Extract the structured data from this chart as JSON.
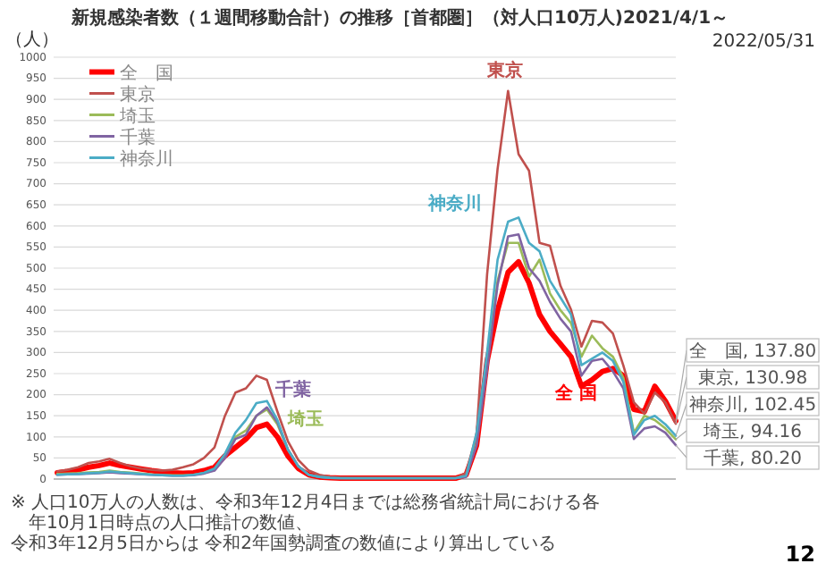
{
  "chart_data": {
    "type": "line",
    "title": "新規感染者数（１週間移動合計）の推移［首都圏］（対人口10万人)2021/4/1～",
    "subtitle": "2022/05/31",
    "ylabel": "（人）",
    "categories": [
      null,
      null,
      null,
      null,
      null,
      null,
      null,
      null,
      null,
      null,
      null,
      null,
      null,
      null,
      null,
      null,
      null,
      null,
      null,
      null,
      null,
      null,
      null,
      null,
      null,
      null,
      null,
      null,
      null,
      null,
      null,
      null,
      null,
      null,
      null,
      null,
      null,
      null,
      null,
      null,
      null,
      null,
      null,
      null,
      null,
      null,
      null,
      null,
      null,
      null,
      null,
      null,
      null,
      null,
      null,
      null,
      null,
      null,
      null,
      null
    ],
    "ylim": [
      0,
      1000
    ],
    "yticks": [
      0,
      50,
      100,
      150,
      200,
      250,
      300,
      350,
      400,
      450,
      500,
      550,
      600,
      650,
      700,
      750,
      800,
      850,
      900,
      950,
      1000
    ],
    "grid": "y",
    "legend": "top left",
    "marker": "none",
    "line_style": "solid",
    "series": [
      {
        "name": "全　国",
        "color": "#ff0000",
        "values": [
          15,
          18,
          22,
          28,
          32,
          38,
          32,
          28,
          24,
          20,
          17,
          15,
          14,
          15,
          20,
          28,
          55,
          75,
          95,
          122,
          130,
          100,
          55,
          25,
          10,
          5,
          3,
          2,
          2,
          2,
          2,
          2,
          2,
          2,
          2,
          2,
          2,
          2,
          2,
          10,
          80,
          280,
          400,
          490,
          515,
          465,
          390,
          350,
          320,
          290,
          220,
          235,
          255,
          262,
          245,
          165,
          160,
          220,
          185,
          137.8
        ],
        "value_labels": [
          null,
          null,
          null,
          null,
          null,
          null,
          null,
          null,
          null,
          null,
          null,
          null,
          null,
          null,
          null,
          null,
          null,
          null,
          null,
          null,
          null,
          null,
          null,
          null,
          null,
          null,
          null,
          null,
          null,
          null,
          null,
          null,
          null,
          null,
          null,
          null,
          null,
          null,
          null,
          null,
          null,
          null,
          null,
          null,
          null,
          null,
          null,
          null,
          null,
          null,
          null,
          null,
          null,
          null,
          null,
          null,
          null,
          null,
          null,
          "全　国, 137.80"
        ]
      },
      {
        "name": "東京",
        "color": "#c0504d",
        "values": [
          18,
          22,
          28,
          38,
          42,
          48,
          38,
          30,
          25,
          22,
          20,
          22,
          28,
          35,
          50,
          75,
          150,
          205,
          215,
          245,
          235,
          160,
          90,
          45,
          20,
          10,
          5,
          3,
          2,
          2,
          2,
          2,
          2,
          2,
          2,
          2,
          2,
          2,
          2,
          15,
          106,
          485,
          735,
          920,
          770,
          731,
          560,
          553,
          458,
          402,
          314,
          375,
          371,
          345,
          269,
          182,
          155,
          205,
          182,
          130.98
        ],
        "value_labels": [
          null,
          null,
          null,
          null,
          null,
          null,
          null,
          null,
          null,
          null,
          null,
          null,
          null,
          null,
          null,
          null,
          null,
          null,
          null,
          null,
          null,
          null,
          null,
          null,
          null,
          null,
          null,
          null,
          null,
          null,
          null,
          null,
          null,
          null,
          null,
          null,
          null,
          null,
          null,
          null,
          null,
          null,
          null,
          null,
          null,
          null,
          null,
          null,
          null,
          null,
          null,
          null,
          null,
          null,
          null,
          null,
          null,
          null,
          null,
          "東京, 130.98"
        ]
      },
      {
        "name": "埼玉",
        "color": "#9bbb59",
        "values": [
          12,
          13,
          14,
          16,
          17,
          20,
          17,
          15,
          13,
          11,
          10,
          9,
          9,
          10,
          14,
          22,
          55,
          100,
          115,
          150,
          165,
          130,
          70,
          30,
          10,
          5,
          3,
          2,
          2,
          2,
          2,
          2,
          2,
          2,
          2,
          2,
          2,
          2,
          2,
          6,
          85,
          270,
          470,
          560,
          560,
          480,
          520,
          440,
          400,
          370,
          290,
          340,
          310,
          290,
          240,
          110,
          150,
          140,
          120,
          94.16
        ],
        "value_labels": [
          null,
          null,
          null,
          null,
          null,
          null,
          null,
          null,
          null,
          null,
          null,
          null,
          null,
          null,
          null,
          null,
          null,
          null,
          null,
          null,
          null,
          null,
          null,
          null,
          null,
          null,
          null,
          null,
          null,
          null,
          null,
          null,
          null,
          null,
          null,
          null,
          null,
          null,
          null,
          null,
          null,
          null,
          null,
          null,
          null,
          null,
          null,
          null,
          null,
          null,
          null,
          null,
          null,
          null,
          null,
          null,
          null,
          null,
          null,
          "埼玉, 94.16"
        ]
      },
      {
        "name": "千葉",
        "color": "#8064a2",
        "values": [
          10,
          11,
          12,
          13,
          14,
          16,
          14,
          13,
          11,
          10,
          9,
          8,
          8,
          9,
          13,
          20,
          50,
          95,
          105,
          150,
          170,
          135,
          70,
          30,
          10,
          5,
          3,
          2,
          2,
          2,
          2,
          2,
          2,
          2,
          2,
          2,
          2,
          2,
          2,
          5,
          80,
          260,
          460,
          575,
          580,
          500,
          470,
          420,
          380,
          350,
          245,
          280,
          285,
          255,
          215,
          95,
          120,
          125,
          110,
          80.2
        ],
        "value_labels": [
          null,
          null,
          null,
          null,
          null,
          null,
          null,
          null,
          null,
          null,
          null,
          null,
          null,
          null,
          null,
          null,
          null,
          null,
          null,
          null,
          null,
          null,
          null,
          null,
          null,
          null,
          null,
          null,
          null,
          null,
          null,
          null,
          null,
          null,
          null,
          null,
          null,
          null,
          null,
          null,
          null,
          null,
          null,
          null,
          null,
          null,
          null,
          null,
          null,
          null,
          null,
          null,
          null,
          null,
          null,
          null,
          null,
          null,
          null,
          "千葉, 80.20"
        ]
      },
      {
        "name": "神奈川",
        "color": "#4bacc6",
        "values": [
          10,
          11,
          12,
          14,
          15,
          18,
          16,
          14,
          12,
          10,
          9,
          8,
          8,
          10,
          15,
          25,
          60,
          110,
          140,
          180,
          185,
          140,
          70,
          30,
          10,
          5,
          3,
          2,
          2,
          2,
          2,
          2,
          2,
          2,
          2,
          2,
          2,
          2,
          2,
          8,
          110,
          300,
          520,
          610,
          620,
          560,
          540,
          470,
          430,
          390,
          270,
          285,
          300,
          280,
          230,
          105,
          140,
          150,
          130,
          102.45
        ],
        "value_labels": [
          null,
          null,
          null,
          null,
          null,
          null,
          null,
          null,
          null,
          null,
          null,
          null,
          null,
          null,
          null,
          null,
          null,
          null,
          null,
          null,
          null,
          null,
          null,
          null,
          null,
          null,
          null,
          null,
          null,
          null,
          null,
          null,
          null,
          null,
          null,
          null,
          null,
          null,
          null,
          null,
          null,
          null,
          null,
          null,
          null,
          null,
          null,
          null,
          null,
          null,
          null,
          null,
          null,
          null,
          null,
          null,
          null,
          null,
          null,
          "神奈川, 102.45"
        ]
      }
    ],
    "annotations": [
      "※ 人口10万人の人数は、令和3年12月4日までは総務省統計局における各年10月1日時点の人口推計の数値、",
      "令和3年12月5日からは 令和2年国勢調査の数値により算出している",
      "東京",
      "神奈川",
      "全 国",
      "千葉",
      "埼玉",
      "12"
    ]
  }
}
